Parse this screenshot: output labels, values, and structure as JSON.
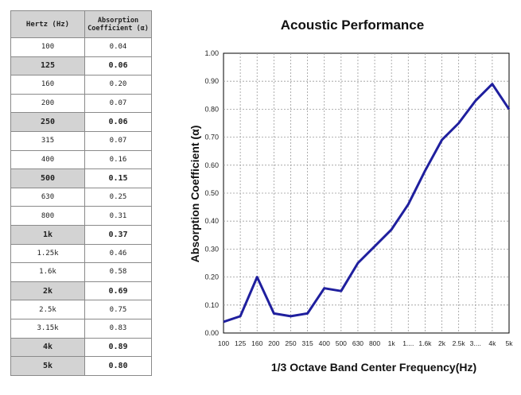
{
  "table": {
    "header_hz": "Hertz (Hz)",
    "header_coef": "Absorption Coefficient (α)",
    "rows": [
      {
        "hz": "100",
        "coef": "0.04",
        "bold": false,
        "alt": false
      },
      {
        "hz": "125",
        "coef": "0.06",
        "bold": true,
        "alt": true
      },
      {
        "hz": "160",
        "coef": "0.20",
        "bold": false,
        "alt": false
      },
      {
        "hz": "200",
        "coef": "0.07",
        "bold": false,
        "alt": false
      },
      {
        "hz": "250",
        "coef": "0.06",
        "bold": true,
        "alt": true
      },
      {
        "hz": "315",
        "coef": "0.07",
        "bold": false,
        "alt": false
      },
      {
        "hz": "400",
        "coef": "0.16",
        "bold": false,
        "alt": false
      },
      {
        "hz": "500",
        "coef": "0.15",
        "bold": true,
        "alt": true
      },
      {
        "hz": "630",
        "coef": "0.25",
        "bold": false,
        "alt": false
      },
      {
        "hz": "800",
        "coef": "0.31",
        "bold": false,
        "alt": false
      },
      {
        "hz": "1k",
        "coef": "0.37",
        "bold": true,
        "alt": true
      },
      {
        "hz": "1.25k",
        "coef": "0.46",
        "bold": false,
        "alt": false
      },
      {
        "hz": "1.6k",
        "coef": "0.58",
        "bold": false,
        "alt": false
      },
      {
        "hz": "2k",
        "coef": "0.69",
        "bold": true,
        "alt": true
      },
      {
        "hz": "2.5k",
        "coef": "0.75",
        "bold": false,
        "alt": false
      },
      {
        "hz": "3.15k",
        "coef": "0.83",
        "bold": false,
        "alt": false
      },
      {
        "hz": "4k",
        "coef": "0.89",
        "bold": true,
        "alt": true
      },
      {
        "hz": "5k",
        "coef": "0.80",
        "bold": true,
        "alt": true
      }
    ]
  },
  "chart_data": {
    "type": "line",
    "title": "Acoustic Performance",
    "xlabel": "1/3 Octave Band Center Frequency(Hz)",
    "ylabel": "Absorption Coefficient (α)",
    "categories": [
      "100",
      "125",
      "160",
      "200",
      "250",
      "315",
      "400",
      "500",
      "630",
      "800",
      "1k",
      "1....",
      "1.6k",
      "2k",
      "2.5k",
      "3....",
      "4k",
      "5k"
    ],
    "series": [
      {
        "values": [
          0.04,
          0.06,
          0.2,
          0.07,
          0.06,
          0.07,
          0.16,
          0.15,
          0.25,
          0.31,
          0.37,
          0.46,
          0.58,
          0.69,
          0.75,
          0.83,
          0.89,
          0.8
        ]
      }
    ],
    "ylim": [
      0,
      1
    ],
    "yticks": [
      "0.00",
      "0.10",
      "0.20",
      "0.30",
      "0.40",
      "0.50",
      "0.60",
      "0.70",
      "0.80",
      "0.90",
      "1.00"
    ],
    "grid": true,
    "line_color": "#1f1f9e"
  }
}
